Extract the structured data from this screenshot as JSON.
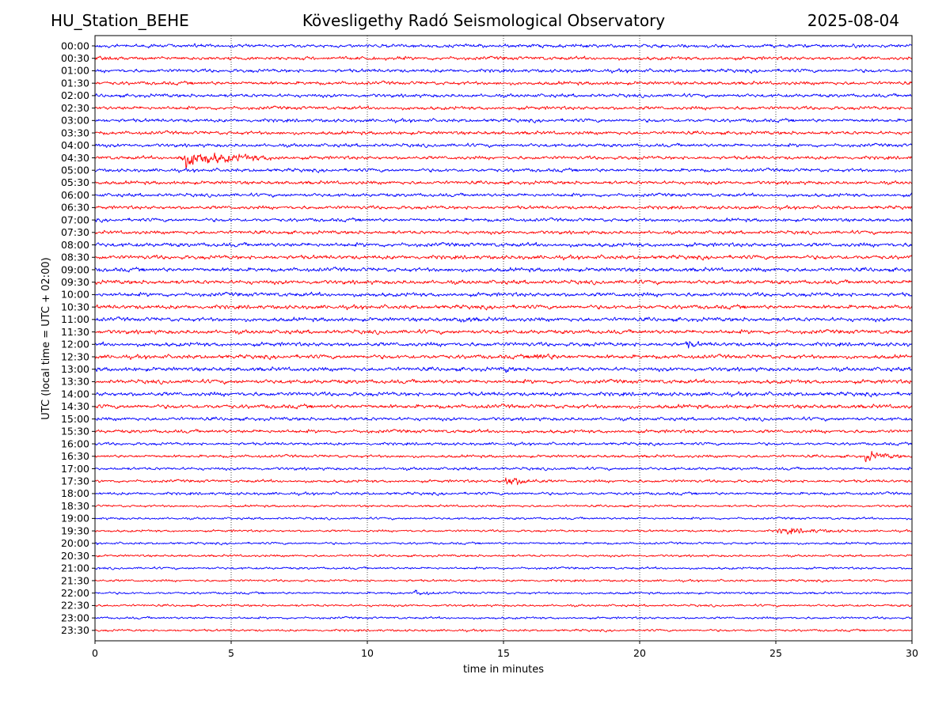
{
  "header": {
    "station": "HU_Station_BEHE",
    "title": "Kövesligethy Radó Seismological Observatory",
    "date": "2025-08-04"
  },
  "chart_data": {
    "type": "line",
    "title": "Kövesligethy Radó Seismological Observatory",
    "xlabel": "time in minutes",
    "ylabel": "UTC (local time = UTC + 02:00)",
    "xlim": [
      0,
      30
    ],
    "x_ticks": [
      0,
      5,
      10,
      15,
      20,
      25,
      30
    ],
    "grid": "vertical dotted lines at 5, 10, 15, 20, 25",
    "trace_colors": [
      "#0000ff",
      "#ff0000"
    ],
    "rows": [
      "00:00",
      "00:30",
      "01:00",
      "01:30",
      "02:00",
      "02:30",
      "03:00",
      "03:30",
      "04:00",
      "04:30",
      "05:00",
      "05:30",
      "06:00",
      "06:30",
      "07:00",
      "07:30",
      "08:00",
      "08:30",
      "09:00",
      "09:30",
      "10:00",
      "10:30",
      "11:00",
      "11:30",
      "12:00",
      "12:30",
      "13:00",
      "13:30",
      "14:00",
      "14:30",
      "15:00",
      "15:30",
      "16:00",
      "16:30",
      "17:00",
      "17:30",
      "18:00",
      "18:30",
      "19:00",
      "19:30",
      "20:00",
      "20:30",
      "21:00",
      "21:30",
      "22:00",
      "22:30",
      "23:00",
      "23:30"
    ],
    "noise_level": [
      3,
      3,
      3,
      3,
      3,
      3,
      3,
      3,
      3,
      3,
      3,
      3,
      3,
      3,
      3,
      3,
      3.5,
      3.5,
      3.5,
      3.5,
      3.5,
      3.5,
      3.5,
      3.5,
      3.5,
      3.5,
      3.5,
      3.5,
      3.5,
      3.5,
      3,
      3,
      2.5,
      2.5,
      2.5,
      2.5,
      2.5,
      2,
      2,
      2,
      2,
      2,
      2,
      2,
      2,
      2,
      2,
      2
    ],
    "events": [
      {
        "row": "04:30",
        "start_min": 3.0,
        "peak_amp": 14,
        "duration_min": 4.0
      },
      {
        "row": "16:30",
        "start_min": 28.2,
        "peak_amp": 8,
        "duration_min": 1.5
      },
      {
        "row": "17:30",
        "start_min": 15.0,
        "peak_amp": 9,
        "duration_min": 1.5
      },
      {
        "row": "19:30",
        "start_min": 25.0,
        "peak_amp": 5,
        "duration_min": 3.0
      },
      {
        "row": "22:00",
        "start_min": 11.7,
        "peak_amp": 6,
        "duration_min": 0.8
      },
      {
        "row": "12:00",
        "start_min": 21.7,
        "peak_amp": 6,
        "duration_min": 0.6
      },
      {
        "row": "13:00",
        "start_min": 15.0,
        "peak_amp": 6,
        "duration_min": 0.4
      },
      {
        "row": "11:00",
        "start_min": 13.3,
        "peak_amp": 5,
        "duration_min": 0.8
      },
      {
        "row": "12:30",
        "start_min": 16.0,
        "peak_amp": 5,
        "duration_min": 1.5
      }
    ]
  }
}
